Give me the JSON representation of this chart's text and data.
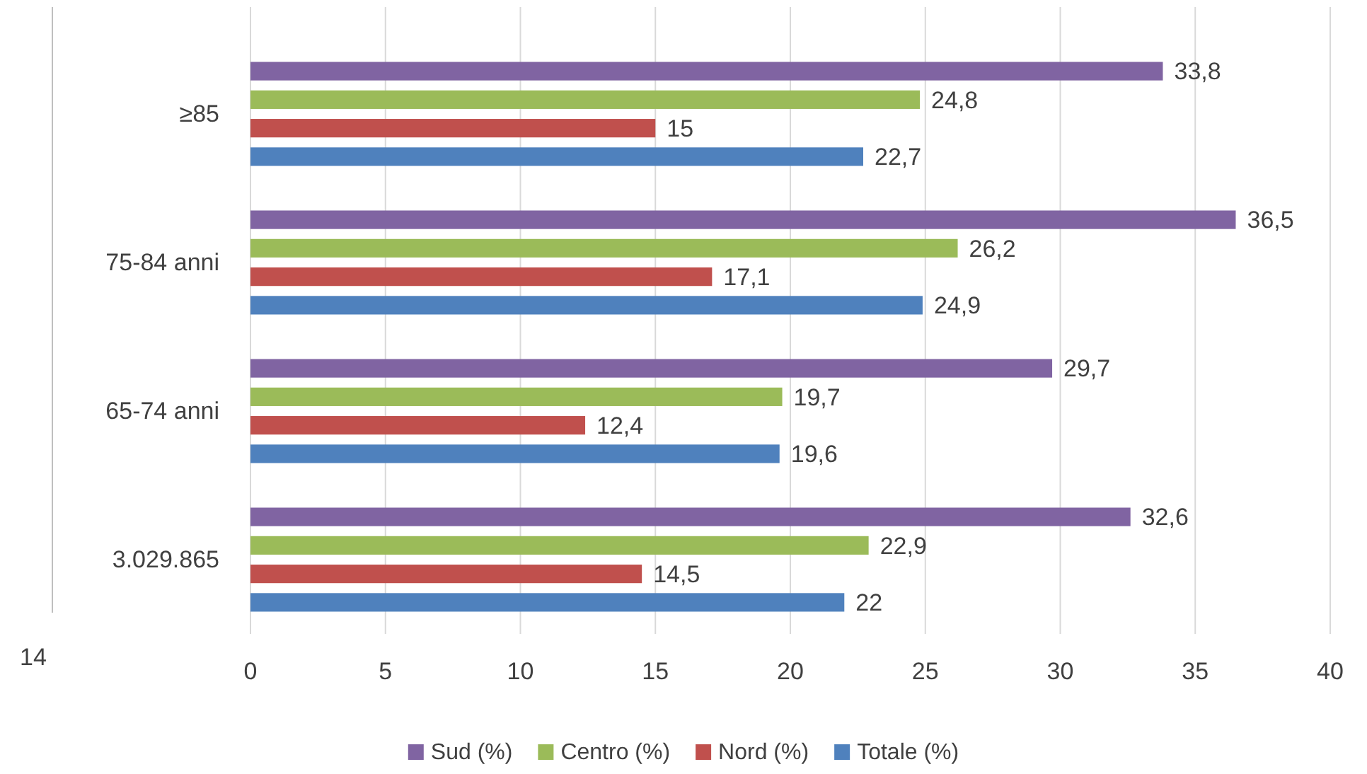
{
  "chart_data": {
    "type": "bar",
    "orientation": "horizontal",
    "categories": [
      "≥85",
      "75-84 anni",
      "65-74 anni",
      "3.029.865"
    ],
    "series": [
      {
        "name": "Sud (%)",
        "color": "#8064a2",
        "values": [
          33.8,
          36.5,
          29.7,
          32.6
        ],
        "value_labels": [
          "33,8",
          "36,5",
          "29,7",
          "32,6"
        ]
      },
      {
        "name": "Centro (%)",
        "color": "#9bbb59",
        "values": [
          24.8,
          26.2,
          19.7,
          22.9
        ],
        "value_labels": [
          "24,8",
          "26,2",
          "19,7",
          "22,9"
        ]
      },
      {
        "name": "Nord (%)",
        "color": "#c0504d",
        "values": [
          15,
          17.1,
          12.4,
          14.5
        ],
        "value_labels": [
          "15",
          "17,1",
          "12,4",
          "14,5"
        ]
      },
      {
        "name": "Totale (%)",
        "color": "#4f81bd",
        "values": [
          22.7,
          24.9,
          19.6,
          22
        ],
        "value_labels": [
          "22,7",
          "24,9",
          "19,6",
          "22"
        ]
      }
    ],
    "xlim": [
      0,
      40
    ],
    "xticks": [
      0,
      5,
      10,
      15,
      20,
      25,
      30,
      35,
      40
    ],
    "grid": "x",
    "legend": "bottom",
    "annotations": [
      "14"
    ]
  }
}
